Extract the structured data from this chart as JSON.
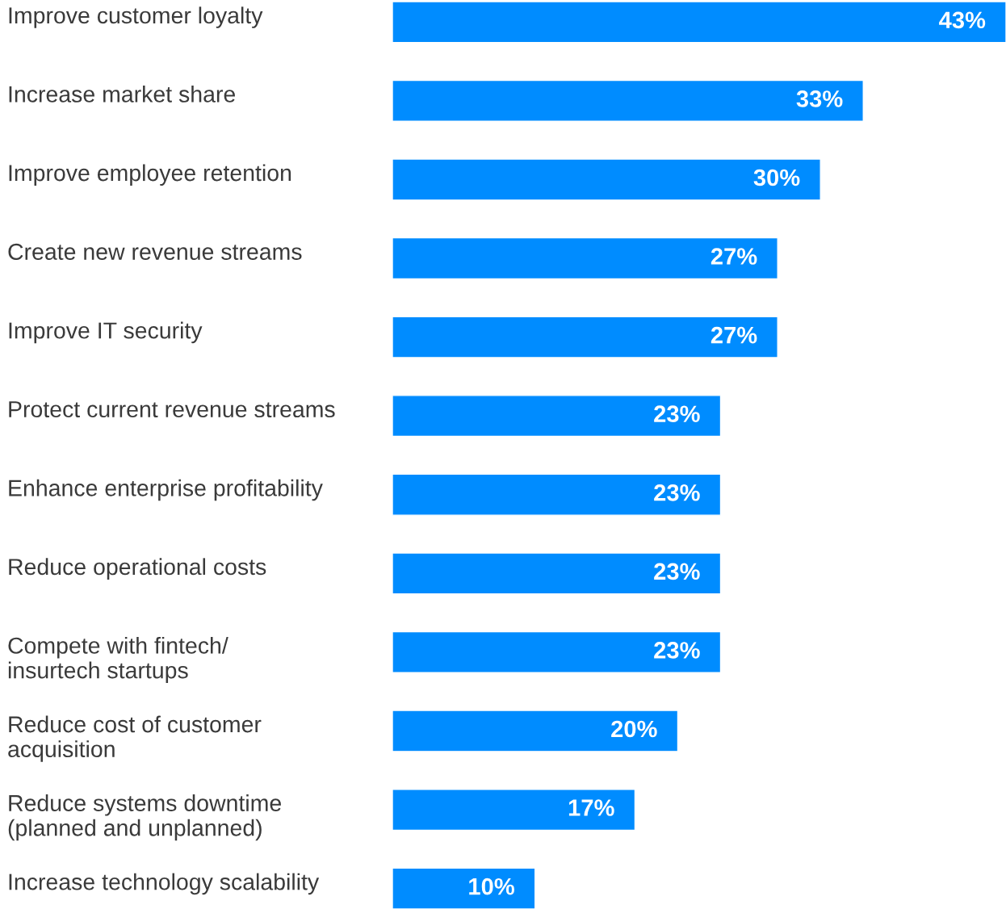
{
  "chart_data": {
    "type": "bar",
    "orientation": "horizontal",
    "categories": [
      "Improve customer loyalty",
      "Increase market share",
      "Improve employee retention",
      "Create new revenue streams",
      "Improve IT security",
      "Protect current revenue streams",
      "Enhance enterprise profitability",
      "Reduce operational costs",
      "Compete with fintech/\ninsurtech startups",
      "Reduce cost of customer\nacquisition",
      "Reduce systems downtime\n(planned and unplanned)",
      "Increase technology scalability"
    ],
    "values": [
      43,
      33,
      30,
      27,
      27,
      23,
      23,
      23,
      23,
      20,
      17,
      10
    ],
    "value_labels": [
      "43%",
      "33%",
      "30%",
      "27%",
      "27%",
      "23%",
      "23%",
      "23%",
      "23%",
      "20%",
      "17%",
      "10%"
    ],
    "color": "#008cff",
    "xlim": [
      0,
      43
    ],
    "tick_labels": "y",
    "grid": false,
    "legend": false
  }
}
